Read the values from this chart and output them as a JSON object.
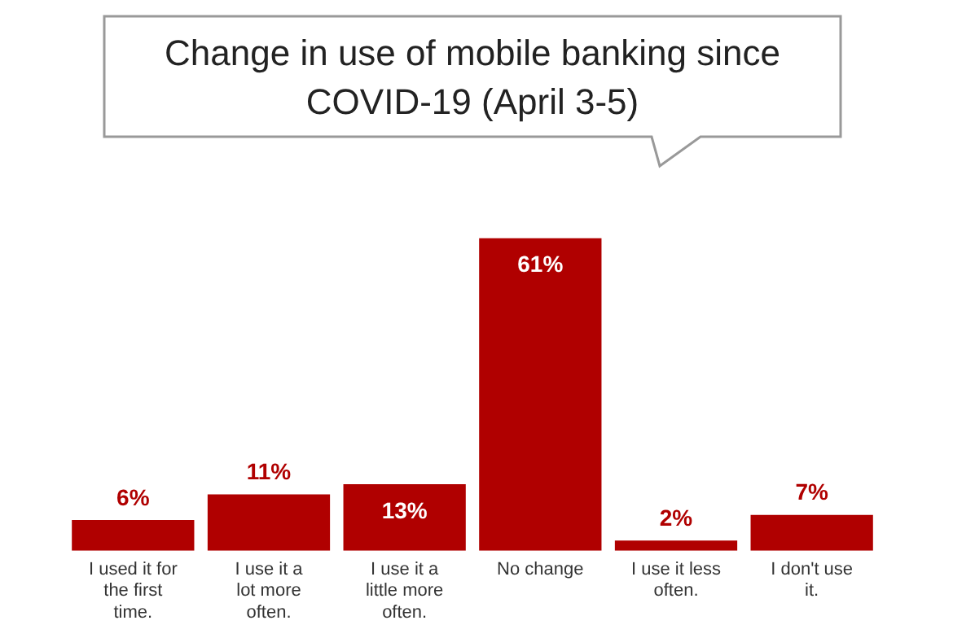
{
  "chart_data": {
    "type": "bar",
    "title": "Change in use of mobile banking since COVID-19 (April 3-5)",
    "categories": [
      "I used it for the first time.",
      "I use it a lot more often.",
      "I use it a little more often.",
      "No change",
      "I use it less often.",
      "I don't use it."
    ],
    "values": [
      6,
      11,
      13,
      61,
      2,
      7
    ],
    "value_labels": [
      "6%",
      "11%",
      "13%",
      "61%",
      "2%",
      "7%"
    ],
    "color": "#b00000",
    "grid": false,
    "legend": false
  }
}
